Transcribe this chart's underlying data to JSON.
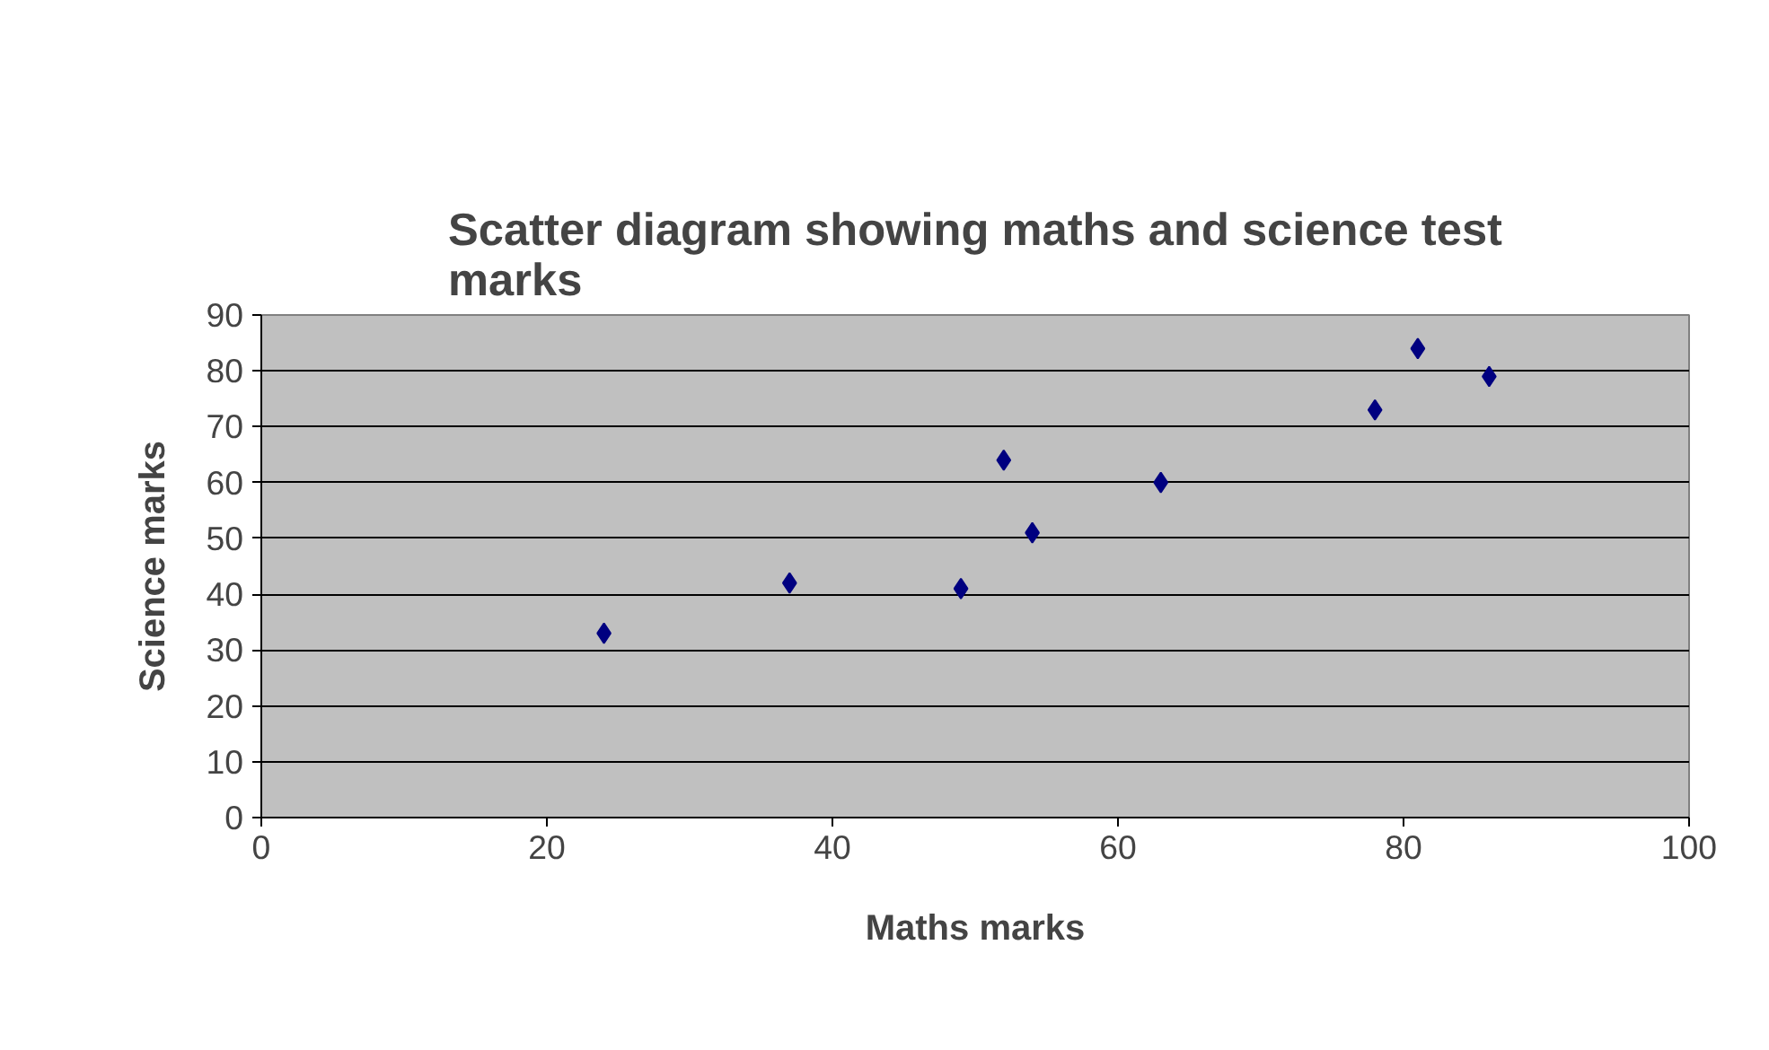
{
  "chart_data": {
    "type": "scatter",
    "title": "Scatter diagram showing maths and science test marks",
    "xlabel": "Maths marks",
    "ylabel": "Science marks",
    "x": [
      24,
      37,
      49,
      52,
      54,
      63,
      78,
      81,
      86
    ],
    "series": [
      {
        "color": "#000080",
        "values": [
          33,
          42,
          41,
          64,
          51,
          60,
          73,
          84,
          79
        ]
      }
    ],
    "xlim": [
      0,
      100
    ],
    "xticks": [
      0,
      20,
      40,
      60,
      80,
      100
    ],
    "ylim": [
      0,
      90
    ],
    "yticks": [
      0,
      10,
      20,
      30,
      40,
      50,
      60,
      70,
      80,
      90
    ],
    "grid": "y",
    "marker": "diamond"
  }
}
